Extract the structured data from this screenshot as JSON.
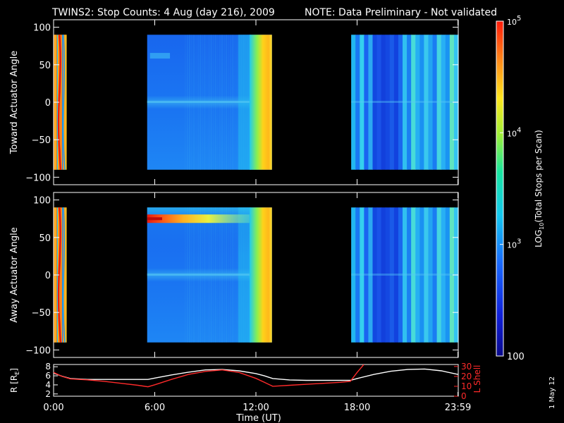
{
  "title": {
    "text": "TWINS2: Stop Counts:  4 Aug (day 216), 2009",
    "note": "NOTE: Data Preliminary - Not validated",
    "note_color": "#ff2a2a"
  },
  "stamp": "1 May 12",
  "chart_data": [
    {
      "type": "heatmap",
      "panel": "toward",
      "ylabel": "Toward Actuator Angle",
      "ylim": [
        -110,
        110
      ],
      "yticks": [
        "100",
        "50",
        "0",
        "−50",
        "−100"
      ],
      "ytick_values": [
        100,
        50,
        0,
        -50,
        -100
      ],
      "data_range_y": [
        -90,
        90
      ],
      "data_segments_ut_hours": [
        [
          0.0,
          0.75
        ],
        [
          5.55,
          12.95
        ],
        [
          17.65,
          24.0
        ]
      ],
      "intensity_profile": "blue ~10^2.3-10^2.7 background; strong orange/red bands near 0:00-0:45 and yellow-orange near 12:30-12:55",
      "colorscale": "log10"
    },
    {
      "type": "heatmap",
      "panel": "away",
      "ylabel": "Away Actuator Angle",
      "ylim": [
        -110,
        110
      ],
      "yticks": [
        "100",
        "50",
        "0",
        "−50",
        "−100"
      ],
      "ytick_values": [
        100,
        50,
        0,
        -50,
        -100
      ],
      "data_range_y": [
        -90,
        90
      ],
      "data_segments_ut_hours": [
        [
          0.0,
          0.75
        ],
        [
          5.55,
          12.95
        ],
        [
          17.65,
          24.0
        ]
      ],
      "features": "bright red/orange horizontal streak near +75 deg between 5:55 and ~8:00, fading to yellow toward 12:30",
      "colorscale": "log10"
    },
    {
      "type": "line",
      "panel": "ephemeris",
      "xlabel": "Time (UT)",
      "xticks": [
        "0:00",
        "6:00",
        "12:00",
        "18:00",
        "23:59"
      ],
      "xtick_values": [
        0,
        6,
        12,
        18,
        23.98
      ],
      "left_axis": {
        "label_main": "R [R",
        "label_sub": "E",
        "ticks": [
          "8",
          "6",
          "4",
          "2"
        ],
        "tick_values": [
          8,
          6,
          4,
          2
        ],
        "ylim": [
          1.5,
          8.5
        ]
      },
      "right_axis": {
        "label": "L Shell",
        "ticks": [
          "30",
          "20",
          "10",
          "0"
        ],
        "tick_values": [
          30,
          20,
          10,
          0
        ],
        "ylim": [
          0,
          32
        ],
        "color": "#ff2a2a"
      },
      "series": [
        {
          "name": "R",
          "color": "#ffffff",
          "x": [
            0,
            0.5,
            1,
            2,
            3,
            4,
            5,
            5.6,
            6,
            7,
            8,
            9,
            10,
            11,
            12,
            12.5,
            13,
            14,
            15,
            16,
            17,
            17.6,
            18,
            19,
            20,
            21,
            22,
            23,
            23.98
          ],
          "values": [
            6.6,
            5.9,
            5.4,
            5.2,
            5.2,
            5.2,
            5.2,
            5.2,
            5.5,
            6.2,
            6.8,
            7.3,
            7.4,
            7.1,
            6.5,
            6.0,
            5.4,
            5.1,
            5.0,
            5.0,
            5.0,
            5.0,
            5.4,
            6.3,
            7.0,
            7.4,
            7.5,
            7.1,
            6.3
          ]
        },
        {
          "name": "L Shell",
          "color": "#ff2a2a",
          "x": [
            0,
            0.5,
            1,
            2,
            3,
            4,
            5,
            5.6,
            6,
            7,
            8,
            9,
            10,
            11,
            12,
            12.5,
            13,
            14,
            15,
            16,
            17,
            17.6,
            18,
            18.4
          ],
          "values": [
            24,
            20,
            17.5,
            16.5,
            15,
            13,
            11,
            9.5,
            11.5,
            17,
            22,
            25,
            26.5,
            24,
            18,
            14,
            10,
            11,
            12,
            13,
            14,
            15,
            24,
            32
          ]
        }
      ]
    }
  ],
  "colorbar": {
    "scale": "log10",
    "label_log": "LOG",
    "label_sub": "10",
    "label_rest": "(Total Stops per Scan)",
    "ticks": [
      {
        "value": 100000,
        "base": "10",
        "exp": "5"
      },
      {
        "value": 10000,
        "base": "10",
        "exp": "4"
      },
      {
        "value": 1000,
        "base": "10",
        "exp": "3"
      },
      {
        "value": 100,
        "base": "100",
        "exp": ""
      }
    ],
    "range": [
      100,
      100000
    ]
  }
}
